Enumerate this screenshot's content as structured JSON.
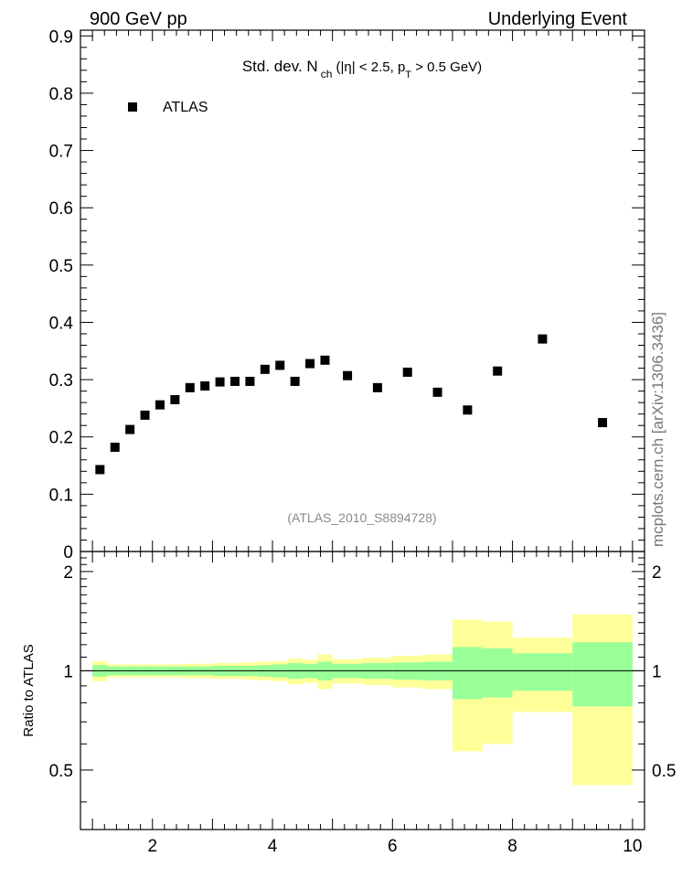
{
  "header": {
    "left": "900 GeV pp",
    "right": "Underlying Event"
  },
  "side_label": "mcplots.cern.ch [arXiv:1306.3436]",
  "chart_data": [
    {
      "type": "scatter",
      "title_main": "Std. dev. N",
      "title_sub": "ch",
      "title_rest1": " (|η| < 2.5, p",
      "title_sub2": "T",
      "title_rest2": " > 0.5 GeV)",
      "watermark": "(ATLAS_2010_S8894728)",
      "xlim": [
        0.8,
        10.2
      ],
      "ylim": [
        0,
        0.91
      ],
      "yticks": [
        0,
        0.1,
        0.2,
        0.3,
        0.4,
        0.5,
        0.6,
        0.7,
        0.8,
        0.9
      ],
      "ytick_labels": [
        "0",
        "0.1",
        "0.2",
        "0.3",
        "0.4",
        "0.5",
        "0.6",
        "0.7",
        "0.8",
        "0.9"
      ],
      "legend": {
        "placement": "top-left",
        "entries": [
          "ATLAS"
        ]
      },
      "series": [
        {
          "name": "ATLAS",
          "color": "#000000",
          "points": [
            [
              1.125,
              0.143
            ],
            [
              1.375,
              0.182
            ],
            [
              1.625,
              0.213
            ],
            [
              1.875,
              0.238
            ],
            [
              2.125,
              0.256
            ],
            [
              2.375,
              0.265
            ],
            [
              2.625,
              0.286
            ],
            [
              2.875,
              0.289
            ],
            [
              3.125,
              0.296
            ],
            [
              3.375,
              0.297
            ],
            [
              3.625,
              0.297
            ],
            [
              3.875,
              0.318
            ],
            [
              4.125,
              0.325
            ],
            [
              4.375,
              0.297
            ],
            [
              4.625,
              0.328
            ],
            [
              4.875,
              0.334
            ],
            [
              5.25,
              0.307
            ],
            [
              5.75,
              0.286
            ],
            [
              6.25,
              0.313
            ],
            [
              6.75,
              0.278
            ],
            [
              7.25,
              0.247
            ],
            [
              7.75,
              0.315
            ],
            [
              8.5,
              0.371
            ],
            [
              9.5,
              0.225
            ]
          ]
        }
      ]
    },
    {
      "type": "area",
      "ylabel": "Ratio to ATLAS",
      "xlim": [
        0.8,
        10.2
      ],
      "ylim": [
        0.33,
        2.3
      ],
      "yticks_labeled": [
        0.5,
        1,
        2
      ],
      "ytick_labels": [
        "0.5",
        "1",
        "2"
      ],
      "xticks_labeled": [
        2,
        4,
        6,
        8,
        10
      ],
      "xtick_labels": [
        "2",
        "4",
        "6",
        "8",
        "10"
      ],
      "reference_line": 1,
      "band_colors": {
        "inner": "#99ff99",
        "outer": "#ffff99"
      },
      "bands": [
        {
          "x": [
            1.0,
            1.25
          ],
          "inner": [
            0.96,
            1.04
          ],
          "outer": [
            0.93,
            1.07
          ]
        },
        {
          "x": [
            1.25,
            1.5
          ],
          "inner": [
            0.97,
            1.03
          ],
          "outer": [
            0.955,
            1.045
          ]
        },
        {
          "x": [
            1.5,
            1.75
          ],
          "inner": [
            0.97,
            1.03
          ],
          "outer": [
            0.955,
            1.045
          ]
        },
        {
          "x": [
            1.75,
            2.0
          ],
          "inner": [
            0.97,
            1.03
          ],
          "outer": [
            0.955,
            1.045
          ]
        },
        {
          "x": [
            2.0,
            2.25
          ],
          "inner": [
            0.97,
            1.03
          ],
          "outer": [
            0.955,
            1.045
          ]
        },
        {
          "x": [
            2.25,
            2.5
          ],
          "inner": [
            0.97,
            1.03
          ],
          "outer": [
            0.955,
            1.045
          ]
        },
        {
          "x": [
            2.5,
            2.75
          ],
          "inner": [
            0.97,
            1.03
          ],
          "outer": [
            0.95,
            1.05
          ]
        },
        {
          "x": [
            2.75,
            3.0
          ],
          "inner": [
            0.97,
            1.03
          ],
          "outer": [
            0.95,
            1.05
          ]
        },
        {
          "x": [
            3.0,
            3.25
          ],
          "inner": [
            0.965,
            1.035
          ],
          "outer": [
            0.945,
            1.055
          ]
        },
        {
          "x": [
            3.25,
            3.5
          ],
          "inner": [
            0.965,
            1.035
          ],
          "outer": [
            0.945,
            1.055
          ]
        },
        {
          "x": [
            3.5,
            3.75
          ],
          "inner": [
            0.965,
            1.035
          ],
          "outer": [
            0.94,
            1.06
          ]
        },
        {
          "x": [
            3.75,
            4.0
          ],
          "inner": [
            0.96,
            1.04
          ],
          "outer": [
            0.935,
            1.065
          ]
        },
        {
          "x": [
            4.0,
            4.25
          ],
          "inner": [
            0.955,
            1.045
          ],
          "outer": [
            0.93,
            1.07
          ]
        },
        {
          "x": [
            4.25,
            4.5
          ],
          "inner": [
            0.945,
            1.055
          ],
          "outer": [
            0.91,
            1.09
          ]
        },
        {
          "x": [
            4.5,
            4.75
          ],
          "inner": [
            0.95,
            1.05
          ],
          "outer": [
            0.92,
            1.08
          ]
        },
        {
          "x": [
            4.75,
            5.0
          ],
          "inner": [
            0.935,
            1.065
          ],
          "outer": [
            0.88,
            1.12
          ]
        },
        {
          "x": [
            5.0,
            5.5
          ],
          "inner": [
            0.95,
            1.05
          ],
          "outer": [
            0.915,
            1.085
          ]
        },
        {
          "x": [
            5.5,
            6.0
          ],
          "inner": [
            0.945,
            1.055
          ],
          "outer": [
            0.905,
            1.095
          ]
        },
        {
          "x": [
            6.0,
            6.5
          ],
          "inner": [
            0.94,
            1.06
          ],
          "outer": [
            0.89,
            1.11
          ]
        },
        {
          "x": [
            6.5,
            7.0
          ],
          "inner": [
            0.935,
            1.065
          ],
          "outer": [
            0.88,
            1.12
          ]
        },
        {
          "x": [
            7.0,
            7.5
          ],
          "inner": [
            0.82,
            1.18
          ],
          "outer": [
            0.57,
            1.43
          ]
        },
        {
          "x": [
            7.5,
            8.0
          ],
          "inner": [
            0.83,
            1.17
          ],
          "outer": [
            0.6,
            1.41
          ]
        },
        {
          "x": [
            8.0,
            9.0
          ],
          "inner": [
            0.87,
            1.13
          ],
          "outer": [
            0.75,
            1.26
          ]
        },
        {
          "x": [
            9.0,
            10.0
          ],
          "inner": [
            0.78,
            1.22
          ],
          "outer": [
            0.45,
            1.48
          ]
        }
      ]
    }
  ]
}
